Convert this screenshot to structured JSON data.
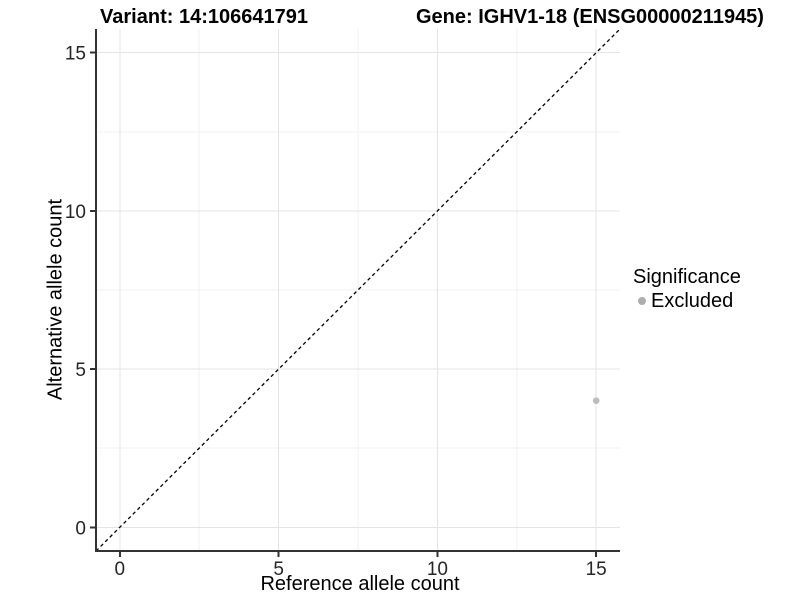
{
  "header": {
    "variant_title": "Variant: 14:106641791",
    "gene_title": "Gene: IGHV1-18 (ENSG00000211945)"
  },
  "axes": {
    "x_title": "Reference allele count",
    "y_title": "Alternative allele count"
  },
  "legend": {
    "title": "Significance",
    "items": [
      {
        "label": "Excluded",
        "color": "#b3b3b3"
      }
    ]
  },
  "chart_data": {
    "type": "scatter",
    "title": "Variant: 14:106641791 | Gene: IGHV1-18 (ENSG00000211945)",
    "xlabel": "Reference allele count",
    "ylabel": "Alternative allele count",
    "xlim": [
      -0.75,
      15.75
    ],
    "ylim": [
      -0.75,
      15.75
    ],
    "x_ticks": [
      0,
      5,
      10,
      15
    ],
    "y_ticks": [
      0,
      5,
      10,
      15
    ],
    "x_minor_ticks": [
      2.5,
      7.5,
      12.5
    ],
    "y_minor_ticks": [
      2.5,
      7.5,
      12.5
    ],
    "grid": "major+minor",
    "legend_position": "right",
    "legend_title": "Significance",
    "series": [
      {
        "name": "Excluded",
        "color": "#bdbdbd",
        "points": [
          {
            "x": 15,
            "y": 4
          }
        ]
      }
    ],
    "identity_line": {
      "style": "dashed",
      "color": "#000000",
      "from": -0.75,
      "to": 15.75
    },
    "style": {
      "axis_line_color": "#333333",
      "tick_label_color": "#262626",
      "grid_major_color": "#e4e4e4",
      "grid_minor_color": "#f0f0f0",
      "background": "#ffffff"
    }
  }
}
